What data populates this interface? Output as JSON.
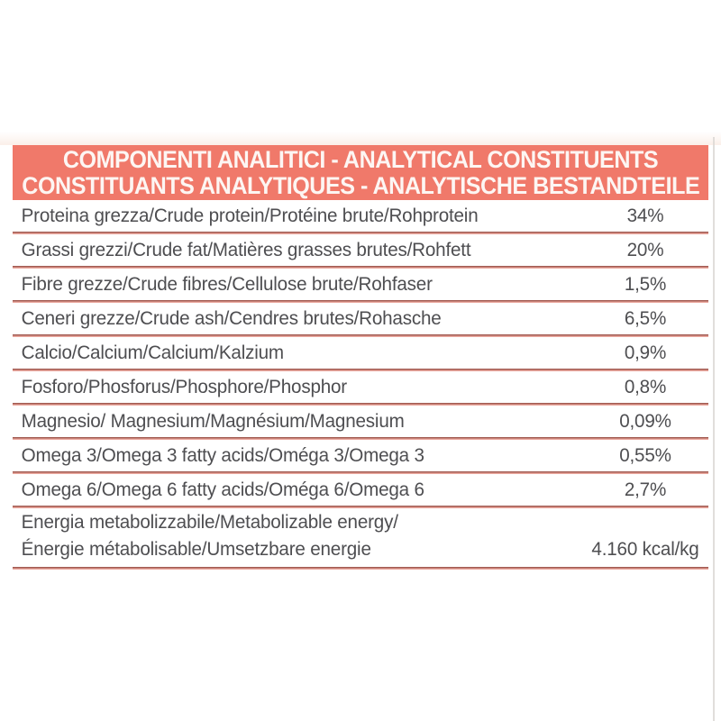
{
  "table": {
    "header": {
      "line1": "COMPONENTI ANALITICI - ANALYTICAL CONSTITUENTS",
      "line2": "CONSTITUANTS ANALYTIQUES - ANALYTISCHE BESTANDTEILE"
    },
    "rows": [
      {
        "label_lines": [
          "Proteina grezza/Crude protein/Protéine brute/Rohprotein"
        ],
        "value": "34%"
      },
      {
        "label_lines": [
          "Grassi grezzi/Crude fat/Matières grasses brutes/Rohfett"
        ],
        "value": "20%"
      },
      {
        "label_lines": [
          "Fibre grezze/Crude fibres/Cellulose brute/Rohfaser"
        ],
        "value": "1,5%"
      },
      {
        "label_lines": [
          "Ceneri grezze/Crude ash/Cendres brutes/Rohasche"
        ],
        "value": "6,5%"
      },
      {
        "label_lines": [
          "Calcio/Calcium/Calcium/Kalzium"
        ],
        "value": "0,9%"
      },
      {
        "label_lines": [
          "Fosforo/Phosforus/Phosphore/Phosphor"
        ],
        "value": "0,8%"
      },
      {
        "label_lines": [
          "Magnesio/ Magnesium/Magnésium/Magnesium"
        ],
        "value": "0,09%"
      },
      {
        "label_lines": [
          "Omega 3/Omega 3 fatty acids/Oméga 3/Omega 3"
        ],
        "value": "0,55%"
      },
      {
        "label_lines": [
          "Omega 6/Omega 6 fatty acids/Oméga 6/Omega 6"
        ],
        "value": "2,7%"
      },
      {
        "label_lines": [
          "Energia metabolizzabile/Metabolizable energy/",
          "Énergie métabolisable/Umsetzbare energie"
        ],
        "value": "4.160 kcal/kg"
      }
    ],
    "colors": {
      "header_bg": "#f0796a",
      "header_text": "#fdf6f3",
      "body_text": "#4e4e51",
      "divider_dark": "#a25b52",
      "divider_light": "#eba89f"
    }
  }
}
